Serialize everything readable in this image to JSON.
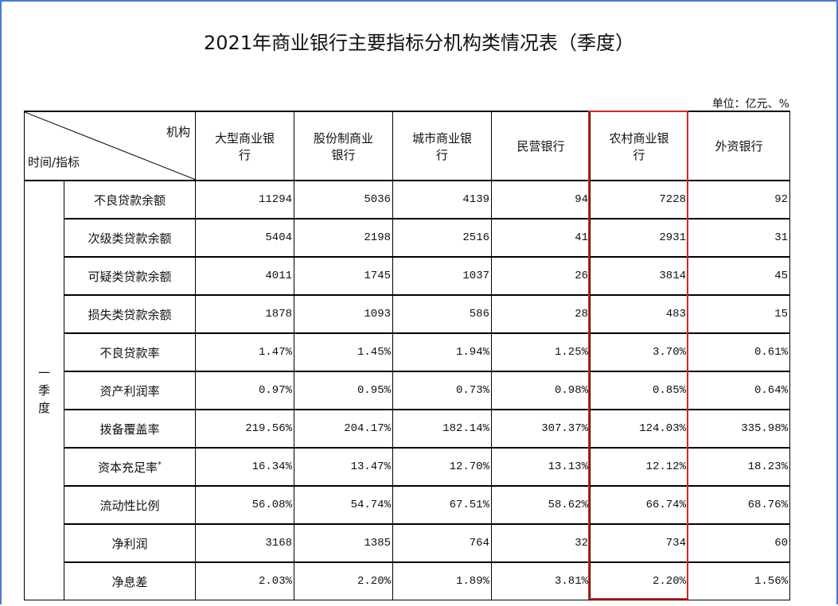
{
  "title": "2021年商业银行主要指标分机构类情况表（季度）",
  "unit": "单位：亿元、%",
  "table": {
    "corner_top": "机构",
    "corner_bottom": "时间/指标",
    "columns": [
      "大型商业银行",
      "股份制商业银行",
      "城市商业银行",
      "民营银行",
      "农村商业银行",
      "外资银行"
    ],
    "group": "一季度",
    "rows": [
      {
        "label": "不良贷款余额",
        "cells": [
          "11294",
          "5036",
          "4139",
          "94",
          "7228",
          "92"
        ]
      },
      {
        "label": "次级类贷款余额",
        "cells": [
          "5404",
          "2198",
          "2516",
          "41",
          "2931",
          "31"
        ]
      },
      {
        "label": "可疑类贷款余额",
        "cells": [
          "4011",
          "1745",
          "1037",
          "26",
          "3814",
          "45"
        ]
      },
      {
        "label": "损失类贷款余额",
        "cells": [
          "1878",
          "1093",
          "586",
          "28",
          "483",
          "15"
        ]
      },
      {
        "label": "不良贷款率",
        "cells": [
          "1.47%",
          "1.45%",
          "1.94%",
          "1.25%",
          "3.70%",
          "0.61%"
        ]
      },
      {
        "label": "资产利润率",
        "cells": [
          "0.97%",
          "0.95%",
          "0.73%",
          "0.98%",
          "0.85%",
          "0.64%"
        ]
      },
      {
        "label": "拨备覆盖率",
        "cells": [
          "219.56%",
          "204.17%",
          "182.14%",
          "307.37%",
          "124.03%",
          "335.98%"
        ]
      },
      {
        "label": "资本充足率",
        "mark": "*",
        "cells": [
          "16.34%",
          "13.47%",
          "12.70%",
          "13.13%",
          "12.12%",
          "18.23%"
        ]
      },
      {
        "label": "流动性比例",
        "cells": [
          "56.08%",
          "54.74%",
          "67.51%",
          "58.62%",
          "66.74%",
          "68.76%"
        ]
      },
      {
        "label": "净利润",
        "cells": [
          "3168",
          "1385",
          "764",
          "32",
          "734",
          "60"
        ]
      },
      {
        "label": "净息差",
        "cells": [
          "2.03%",
          "2.20%",
          "1.89%",
          "3.81%",
          "2.20%",
          "1.56%"
        ]
      }
    ]
  }
}
